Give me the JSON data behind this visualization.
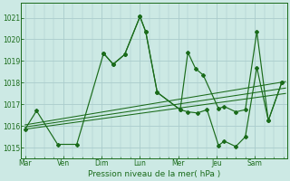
{
  "bg_color": "#cce9e4",
  "line_color": "#1a6b1a",
  "grid_color": "#aacccc",
  "xlabel": "Pression niveau de la mer( hPa )",
  "ylim": [
    1014.5,
    1021.7
  ],
  "yticks": [
    1015,
    1016,
    1017,
    1018,
    1019,
    1020,
    1021
  ],
  "xlim": [
    -0.1,
    6.85
  ],
  "day_labels": [
    "Mar",
    "Ven",
    "Dim",
    "Lun",
    "Mer",
    "Jeu",
    "Sam"
  ],
  "day_positions": [
    0,
    1,
    2,
    3,
    4,
    5,
    6
  ],
  "trend_lines": [
    {
      "x": [
        0.0,
        6.8
      ],
      "y": [
        1015.85,
        1017.5
      ]
    },
    {
      "x": [
        0.0,
        6.8
      ],
      "y": [
        1015.95,
        1017.75
      ]
    },
    {
      "x": [
        0.0,
        6.8
      ],
      "y": [
        1016.05,
        1018.05
      ]
    }
  ],
  "line1_x": [
    0.0,
    0.3,
    0.85,
    1.35,
    2.05,
    2.3,
    2.6,
    3.0,
    3.15,
    3.45,
    4.05,
    4.25,
    4.5,
    4.75,
    5.05,
    5.2,
    5.5,
    5.75,
    6.05,
    6.35,
    6.7
  ],
  "line1_y": [
    1015.85,
    1016.7,
    1015.15,
    1015.15,
    1019.35,
    1018.85,
    1019.3,
    1021.05,
    1020.35,
    1017.55,
    1016.75,
    1016.65,
    1016.6,
    1016.75,
    1015.1,
    1015.3,
    1015.05,
    1015.5,
    1018.7,
    1016.25,
    1018.0
  ],
  "line2_x": [
    2.05,
    2.3,
    2.6,
    3.0,
    3.15,
    3.45,
    4.05,
    4.25,
    4.45,
    4.65,
    5.05,
    5.2,
    5.5,
    5.75,
    6.05,
    6.35,
    6.7
  ],
  "line2_y": [
    1019.35,
    1018.85,
    1019.3,
    1021.05,
    1020.35,
    1017.55,
    1016.75,
    1019.4,
    1018.65,
    1018.35,
    1016.8,
    1016.9,
    1016.65,
    1016.75,
    1020.35,
    1016.25,
    1018.0
  ]
}
